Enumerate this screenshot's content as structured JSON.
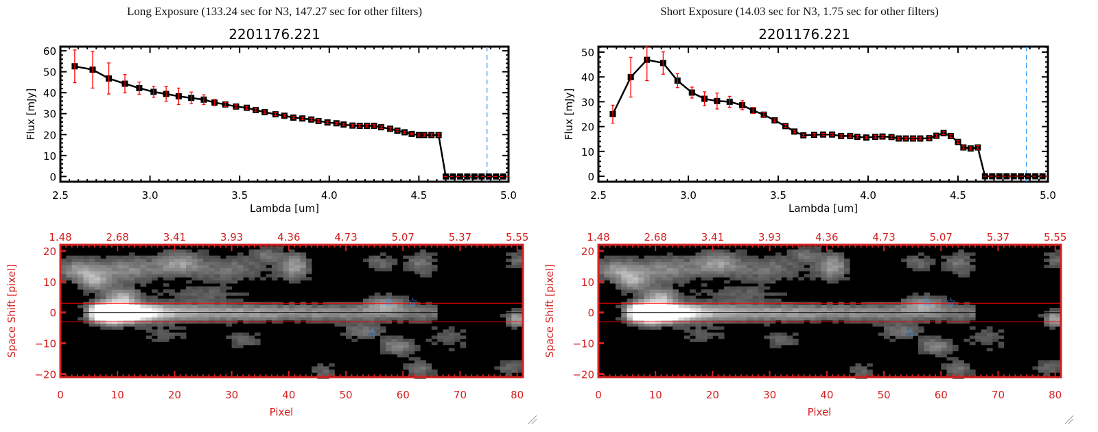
{
  "panels": [
    {
      "title": "Long Exposure (133.24 sec for N3, 147.27 sec for other filters)",
      "object": "2201176.221"
    },
    {
      "title": "Short Exposure (14.03 sec for N3, 1.75 sec for other filters)",
      "object": "2201176.221"
    }
  ],
  "colors": {
    "axis_top": "#000000",
    "axis_image": "#d42020",
    "errorbar": "#ff0000",
    "marker": "#000000",
    "dashed_limit": "#3399ff",
    "star": "#3399ff",
    "aperture": "#ff0000"
  },
  "chart_data": [
    {
      "type": "line",
      "panel": "long",
      "xlabel": "Lambda [um]",
      "ylabel": "Flux [mJy]",
      "xlim": [
        2.5,
        5.0
      ],
      "ylim": [
        -2.5,
        62
      ],
      "xticks": [
        "2.5",
        "3.0",
        "3.5",
        "4.0",
        "4.5",
        "5.0"
      ],
      "xtick_values": [
        2.5,
        3.0,
        3.5,
        4.0,
        4.5,
        5.0
      ],
      "yticks": [
        "0",
        "10",
        "20",
        "30",
        "40",
        "50",
        "60"
      ],
      "ytick_values": [
        0,
        10,
        20,
        30,
        40,
        50,
        60
      ],
      "vline": 4.88,
      "zero_line_from": 4.64,
      "x": [
        2.58,
        2.68,
        2.77,
        2.86,
        2.94,
        3.02,
        3.09,
        3.16,
        3.23,
        3.3,
        3.36,
        3.42,
        3.48,
        3.54,
        3.59,
        3.64,
        3.7,
        3.75,
        3.8,
        3.85,
        3.9,
        3.94,
        3.99,
        4.04,
        4.08,
        4.13,
        4.17,
        4.21,
        4.25,
        4.29,
        4.34,
        4.38,
        4.42,
        4.46,
        4.5,
        4.53,
        4.57,
        4.61,
        4.65,
        4.69,
        4.73,
        4.77,
        4.81,
        4.85,
        4.89,
        4.93,
        4.97
      ],
      "y": [
        52.6,
        51.0,
        46.8,
        44.3,
        42.2,
        40.4,
        39.4,
        38.3,
        37.5,
        36.7,
        35.3,
        34.4,
        33.4,
        32.8,
        31.7,
        30.7,
        29.7,
        29.0,
        28.1,
        27.7,
        27.2,
        26.5,
        25.8,
        25.4,
        24.8,
        24.3,
        24.2,
        24.2,
        24.2,
        23.5,
        22.8,
        21.9,
        21.1,
        20.3,
        19.8,
        19.8,
        19.8,
        19.8,
        0,
        0,
        0,
        0,
        0,
        0,
        0,
        0,
        0
      ],
      "yerr": [
        7.8,
        8.8,
        7.4,
        4.4,
        2.9,
        2.6,
        3.5,
        3.9,
        2.8,
        2.3,
        1.5,
        1.0,
        0.8,
        0.8,
        0.8,
        0.6,
        0.7,
        0.6,
        0.5,
        0.6,
        0.6,
        0.6,
        0.6,
        0.5,
        0.6,
        0.6,
        0.6,
        0.6,
        0.6,
        0.6,
        0.7,
        0.6,
        0.5,
        0.4,
        0.5,
        0.6,
        0.6,
        0.7,
        0,
        0,
        0,
        0,
        0,
        0,
        0,
        0,
        0
      ]
    },
    {
      "type": "line",
      "panel": "short",
      "xlabel": "Lambda [um]",
      "ylabel": "Flux [mJy]",
      "xlim": [
        2.5,
        5.0
      ],
      "ylim": [
        -2.2,
        52.2
      ],
      "xticks": [
        "2.5",
        "3.0",
        "3.5",
        "4.0",
        "4.5",
        "5.0"
      ],
      "xtick_values": [
        2.5,
        3.0,
        3.5,
        4.0,
        4.5,
        5.0
      ],
      "yticks": [
        "0",
        "10",
        "20",
        "30",
        "40",
        "50"
      ],
      "ytick_values": [
        0,
        10,
        20,
        30,
        40,
        50
      ],
      "vline": 4.88,
      "zero_line_from": 4.64,
      "x": [
        2.58,
        2.68,
        2.77,
        2.86,
        2.94,
        3.02,
        3.09,
        3.16,
        3.23,
        3.3,
        3.36,
        3.42,
        3.48,
        3.54,
        3.59,
        3.64,
        3.7,
        3.75,
        3.8,
        3.85,
        3.9,
        3.94,
        3.99,
        4.04,
        4.08,
        4.13,
        4.17,
        4.21,
        4.25,
        4.29,
        4.34,
        4.38,
        4.42,
        4.46,
        4.5,
        4.53,
        4.57,
        4.61,
        4.65,
        4.69,
        4.73,
        4.77,
        4.81,
        4.85,
        4.89,
        4.93,
        4.97
      ],
      "y": [
        25.0,
        39.9,
        46.9,
        45.6,
        38.5,
        33.7,
        31.2,
        30.3,
        30.0,
        28.6,
        26.5,
        24.8,
        22.5,
        20.2,
        18.0,
        16.5,
        16.7,
        16.8,
        16.8,
        16.2,
        16.2,
        15.9,
        15.6,
        15.9,
        16.0,
        15.8,
        15.2,
        15.2,
        15.2,
        15.2,
        15.3,
        16.3,
        17.4,
        16.2,
        13.8,
        11.6,
        11.2,
        11.6,
        0,
        0,
        0,
        0,
        0,
        0,
        0,
        0,
        0
      ],
      "yerr": [
        3.6,
        8.0,
        8.4,
        4.5,
        2.8,
        2.2,
        2.8,
        3.2,
        2.2,
        1.8,
        1.2,
        0.8,
        0.6,
        0.6,
        0.5,
        0.5,
        0.5,
        0.5,
        0.5,
        0.5,
        0.5,
        0.5,
        0.5,
        0.5,
        0.5,
        0.5,
        0.5,
        0.5,
        0.5,
        0.5,
        0.6,
        0.6,
        0.6,
        0.6,
        0.6,
        0.6,
        0.6,
        0.7,
        0,
        0,
        0,
        0,
        0,
        0,
        0,
        0,
        0
      ]
    },
    {
      "type": "heatmap",
      "panel": "long",
      "xlabel": "Pixel",
      "ylabel": "Space Shift [pixel]",
      "xlim": [
        0,
        81
      ],
      "ylim": [
        -21,
        22
      ],
      "xticks": [
        "0",
        "10",
        "20",
        "30",
        "40",
        "50",
        "60",
        "70",
        "80"
      ],
      "xtick_values": [
        0,
        10,
        20,
        30,
        40,
        50,
        60,
        70,
        80
      ],
      "yticks": [
        "20",
        "10",
        "0",
        "−10",
        "−20"
      ],
      "ytick_values": [
        20,
        10,
        0,
        -10,
        -20
      ],
      "top_ticks": [
        "1.48",
        "2.68",
        "3.41",
        "3.93",
        "4.36",
        "4.73",
        "5.07",
        "5.37",
        "5.55"
      ],
      "aperture_lines": [
        3,
        -3
      ],
      "center_line": 0,
      "stars": [
        [
          57.5,
          3.5
        ],
        [
          61.7,
          3.5
        ],
        [
          54.6,
          -6.5
        ]
      ]
    },
    {
      "type": "heatmap",
      "panel": "short",
      "xlabel": "Pixel",
      "ylabel": "Space Shift [pixel]",
      "xlim": [
        0,
        81
      ],
      "ylim": [
        -21,
        22
      ],
      "xticks": [
        "0",
        "10",
        "20",
        "30",
        "40",
        "50",
        "60",
        "70",
        "80"
      ],
      "xtick_values": [
        0,
        10,
        20,
        30,
        40,
        50,
        60,
        70,
        80
      ],
      "yticks": [
        "20",
        "10",
        "0",
        "−10",
        "−20"
      ],
      "ytick_values": [
        20,
        10,
        0,
        -10,
        -20
      ],
      "top_ticks": [
        "1.48",
        "2.68",
        "3.41",
        "3.93",
        "4.36",
        "4.73",
        "5.07",
        "5.37",
        "5.55"
      ],
      "aperture_lines": [
        3,
        -3
      ],
      "center_line": 0,
      "stars": [
        [
          57.5,
          3.5
        ],
        [
          61.7,
          3.5
        ],
        [
          54.6,
          -6.5
        ]
      ]
    }
  ]
}
